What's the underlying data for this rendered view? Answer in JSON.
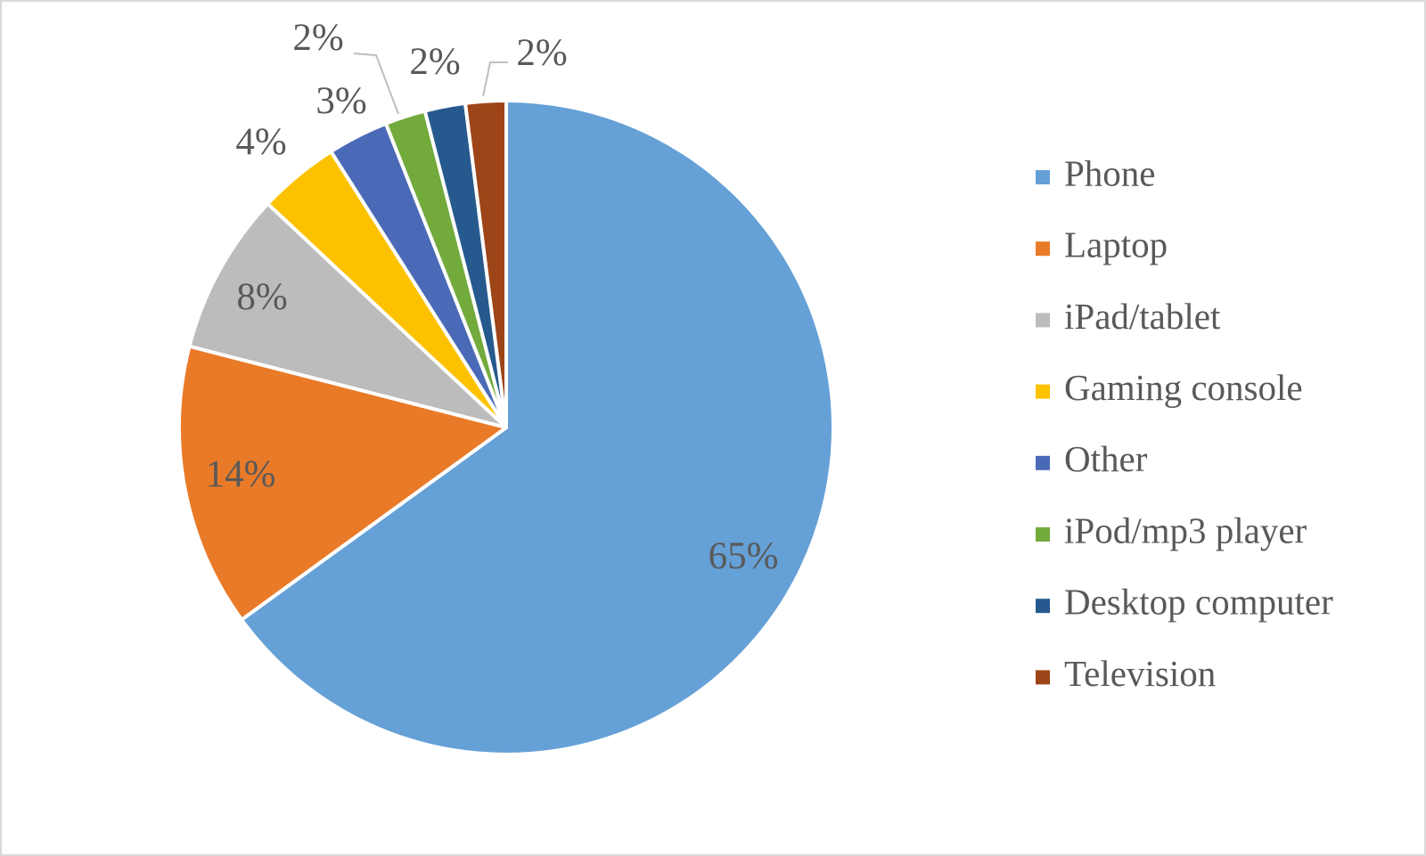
{
  "chart_data": {
    "type": "pie",
    "categories": [
      "Phone",
      "Laptop",
      "iPad/tablet",
      "Gaming console",
      "Other",
      "iPod/mp3 player",
      "Desktop computer",
      "Television"
    ],
    "values": [
      65,
      14,
      8,
      4,
      3,
      2,
      2,
      2
    ],
    "value_labels": [
      "65%",
      "14%",
      "8%",
      "4%",
      "3%",
      "2%",
      "2%",
      "2%"
    ],
    "colors": [
      "#65a0d6",
      "#e97a28",
      "#bcbcbc",
      "#fcc200",
      "#4a6ab8",
      "#72aa3c",
      "#265a8e",
      "#9d4518"
    ],
    "legend": "right"
  }
}
